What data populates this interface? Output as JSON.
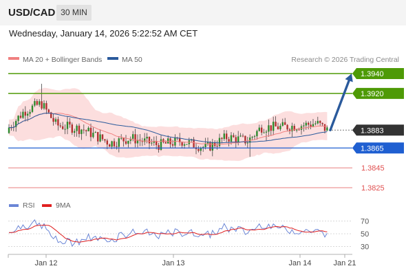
{
  "header": {
    "symbol": "USD/CAD",
    "timeframe": "30 MIN",
    "datetime": "Wednesday, January 14, 2026 5:22:52 AM CET"
  },
  "main_legend": [
    {
      "label": "MA 20 + Bollinger Bands",
      "color": "#f08080"
    },
    {
      "label": "MA 50",
      "color": "#2a5a9c"
    }
  ],
  "credit": "Research © 2026 Trading Central",
  "colors": {
    "support": "#1f5fd1",
    "resistance": "#4e9a06",
    "target_red": "#e05050",
    "arrow": "#2a5a9c",
    "up": "#2d8a2d",
    "down": "#b23030",
    "rsi": "#6b86d6",
    "rsi_ma": "#e02020",
    "band": "#fbd8d8"
  },
  "chart_data": [
    {
      "type": "candlestick",
      "price_range": [
        1.38,
        1.395
      ],
      "x_ticks": [
        "Jan 12",
        "Jan 13",
        "Jan 14",
        "Jan 21"
      ],
      "levels": [
        {
          "value": 1.394,
          "label": "1.3940",
          "kind": "resistance"
        },
        {
          "value": 1.392,
          "label": "1.3920",
          "kind": "resistance"
        },
        {
          "value": 1.3883,
          "label": "1.3883",
          "kind": "current"
        },
        {
          "value": 1.3865,
          "label": "1.3865",
          "kind": "support"
        },
        {
          "value": 1.3845,
          "label": "1.3845",
          "kind": "support_target"
        },
        {
          "value": 1.3825,
          "label": "1.3825",
          "kind": "support_target"
        }
      ],
      "projection": {
        "from": 1.3883,
        "to": 1.394
      }
    },
    {
      "type": "line",
      "legend": [
        {
          "label": "RSI",
          "color": "#6b86d6"
        },
        {
          "label": "9MA",
          "color": "#e02020"
        }
      ],
      "y_ticks": [
        70,
        50,
        30
      ],
      "ylim": [
        25,
        80
      ]
    }
  ]
}
